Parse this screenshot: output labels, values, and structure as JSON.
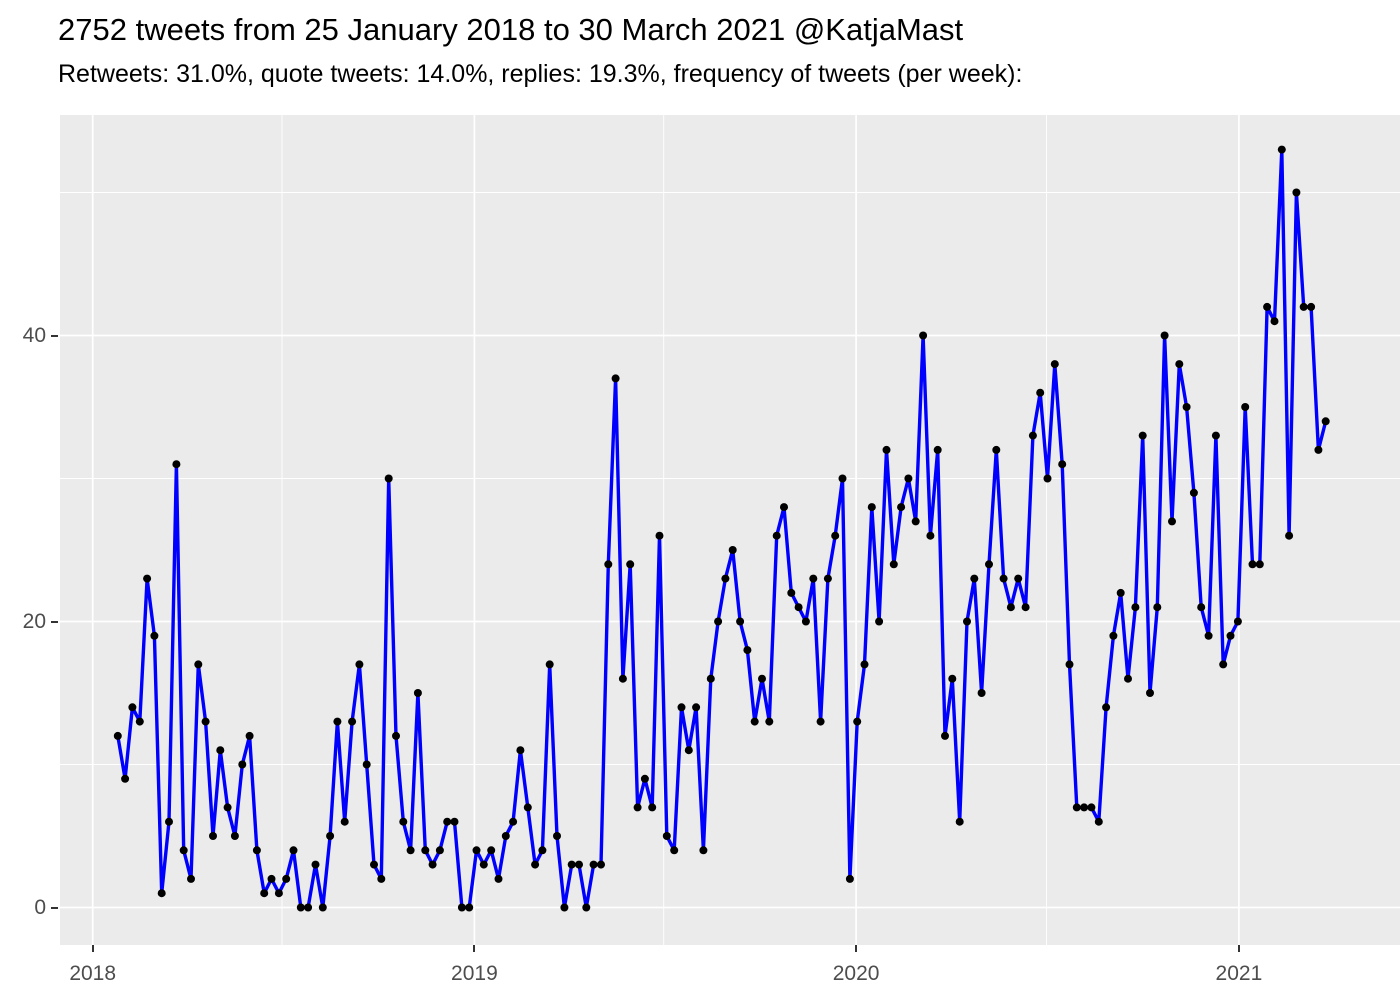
{
  "header": {
    "title": "2752 tweets from 25 January 2018 to 30 March 2021 @KatjaMast",
    "subtitle": "Retweets: 31.0%, quote tweets: 14.0%, replies: 19.3%, frequency of tweets (per week):"
  },
  "chart_data": {
    "type": "line",
    "title": "2752 tweets from 25 January 2018 to 30 March 2021 @KatjaMast",
    "subtitle": "Retweets: 31.0%, quote tweets: 14.0%, replies: 19.3%, frequency of tweets (per week):",
    "xlabel": "",
    "ylabel": "",
    "x_start_date": "2018-01-25",
    "x_interval_days": 7,
    "x_end_date": "2021-03-30",
    "total_tweets": 2752,
    "retweets_pct": 31.0,
    "quote_tweets_pct": 14.0,
    "replies_pct": 19.3,
    "values": [
      12,
      9,
      14,
      13,
      23,
      19,
      1,
      6,
      31,
      4,
      2,
      17,
      13,
      5,
      11,
      7,
      5,
      10,
      12,
      4,
      1,
      2,
      1,
      2,
      4,
      0,
      0,
      3,
      0,
      5,
      13,
      6,
      13,
      17,
      10,
      3,
      2,
      30,
      12,
      6,
      4,
      15,
      4,
      3,
      4,
      6,
      6,
      0,
      0,
      4,
      3,
      4,
      2,
      5,
      6,
      11,
      7,
      3,
      4,
      17,
      5,
      0,
      3,
      3,
      0,
      3,
      3,
      24,
      37,
      16,
      24,
      7,
      9,
      7,
      26,
      5,
      4,
      14,
      11,
      14,
      4,
      16,
      20,
      23,
      25,
      20,
      18,
      13,
      16,
      13,
      26,
      28,
      22,
      21,
      20,
      23,
      13,
      23,
      26,
      30,
      2,
      13,
      17,
      28,
      20,
      32,
      24,
      28,
      30,
      27,
      40,
      26,
      32,
      12,
      16,
      6,
      20,
      23,
      15,
      24,
      32,
      23,
      21,
      23,
      21,
      33,
      36,
      30,
      38,
      31,
      17,
      7,
      7,
      7,
      6,
      14,
      19,
      22,
      16,
      21,
      33,
      15,
      21,
      40,
      27,
      38,
      35,
      29,
      21,
      19,
      33,
      17,
      19,
      20,
      35,
      24,
      24,
      42,
      41,
      53,
      26,
      50,
      42,
      42,
      32,
      34
    ],
    "y_axis": {
      "tick_labels": [
        "0",
        "20",
        "40"
      ],
      "tick_values": [
        0,
        20,
        40
      ],
      "minor_values": [
        10,
        30,
        50
      ],
      "ylim": [
        -3,
        55
      ]
    },
    "x_axis": {
      "tick_labels": [
        "2018",
        "2019",
        "2020",
        "2021"
      ],
      "tick_days": [
        -24,
        341,
        706,
        1072
      ],
      "minor_days": [
        157,
        522,
        888
      ],
      "grid": true
    },
    "legend": "none",
    "colors": {
      "line": "#0000FF",
      "point": "#000000",
      "panel_background": "#EBEBEB",
      "gridline": "#FFFFFF",
      "axis_text": "#4D4D4D",
      "tick_mark": "#333333",
      "title_text": "#000000"
    }
  }
}
